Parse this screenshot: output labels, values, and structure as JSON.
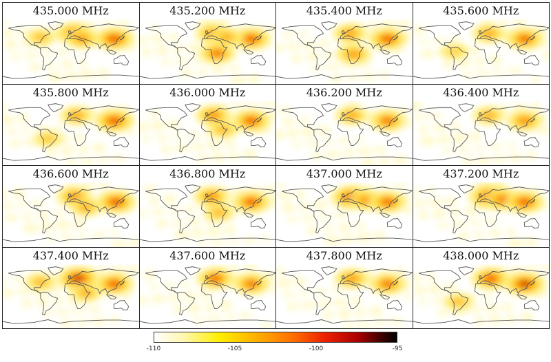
{
  "panels": [
    {
      "label": "435.000 MHz",
      "hotspots": [
        {
          "lon": 10,
          "lat": 50,
          "i": 0.75
        },
        {
          "lon": 115,
          "lat": 35,
          "i": 0.8
        },
        {
          "lon": 30,
          "lat": 35,
          "i": 0.5
        },
        {
          "lon": -80,
          "lat": 40,
          "i": 0.3
        }
      ]
    },
    {
      "label": "435.200 MHz",
      "hotspots": [
        {
          "lon": 15,
          "lat": 50,
          "i": 0.6
        },
        {
          "lon": 115,
          "lat": 35,
          "i": 0.75
        },
        {
          "lon": 25,
          "lat": -5,
          "i": 0.65
        },
        {
          "lon": 50,
          "lat": 40,
          "i": 0.4
        }
      ]
    },
    {
      "label": "435.400 MHz",
      "hotspots": [
        {
          "lon": 15,
          "lat": 50,
          "i": 0.5
        },
        {
          "lon": 115,
          "lat": 35,
          "i": 0.75
        },
        {
          "lon": 25,
          "lat": -8,
          "i": 0.55
        }
      ]
    },
    {
      "label": "435.600 MHz",
      "hotspots": [
        {
          "lon": 20,
          "lat": 50,
          "i": 0.45
        },
        {
          "lon": 115,
          "lat": 35,
          "i": 0.7
        },
        {
          "lon": -70,
          "lat": 0,
          "i": 0.2
        }
      ]
    },
    {
      "label": "435.800 MHz",
      "hotspots": [
        {
          "lon": 15,
          "lat": 50,
          "i": 0.45
        },
        {
          "lon": 115,
          "lat": 35,
          "i": 0.8
        },
        {
          "lon": -60,
          "lat": -15,
          "i": 0.25
        }
      ]
    },
    {
      "label": "436.000 MHz",
      "hotspots": [
        {
          "lon": 15,
          "lat": 50,
          "i": 0.6
        },
        {
          "lon": 115,
          "lat": 35,
          "i": 0.75
        },
        {
          "lon": 40,
          "lat": 10,
          "i": 0.35
        }
      ]
    },
    {
      "label": "436.200 MHz",
      "hotspots": [
        {
          "lon": 20,
          "lat": 50,
          "i": 0.45
        },
        {
          "lon": 115,
          "lat": 35,
          "i": 0.65
        }
      ]
    },
    {
      "label": "436.400 MHz",
      "hotspots": [
        {
          "lon": 20,
          "lat": 50,
          "i": 0.4
        },
        {
          "lon": 115,
          "lat": 35,
          "i": 0.6
        }
      ]
    },
    {
      "label": "436.600 MHz",
      "hotspots": [
        {
          "lon": 10,
          "lat": 50,
          "i": 0.6
        },
        {
          "lon": 120,
          "lat": 35,
          "i": 0.8
        },
        {
          "lon": 40,
          "lat": 20,
          "i": 0.4
        }
      ]
    },
    {
      "label": "436.800 MHz",
      "hotspots": [
        {
          "lon": 10,
          "lat": 50,
          "i": 0.6
        },
        {
          "lon": 115,
          "lat": 35,
          "i": 0.75
        },
        {
          "lon": 30,
          "lat": 5,
          "i": 0.35
        }
      ]
    },
    {
      "label": "437.000 MHz",
      "hotspots": [
        {
          "lon": 20,
          "lat": 48,
          "i": 0.9
        },
        {
          "lon": 60,
          "lat": 40,
          "i": 0.6
        },
        {
          "lon": 115,
          "lat": 35,
          "i": 0.7
        }
      ]
    },
    {
      "label": "437.200 MHz",
      "hotspots": [
        {
          "lon": 25,
          "lat": 50,
          "i": 1.0
        },
        {
          "lon": 60,
          "lat": 42,
          "i": 0.7
        },
        {
          "lon": 115,
          "lat": 35,
          "i": 0.75
        }
      ]
    },
    {
      "label": "437.400 MHz",
      "hotspots": [
        {
          "lon": 20,
          "lat": 50,
          "i": 0.95
        },
        {
          "lon": 115,
          "lat": 35,
          "i": 0.75
        },
        {
          "lon": -80,
          "lat": 40,
          "i": 0.35
        },
        {
          "lon": 40,
          "lat": 10,
          "i": 0.4
        }
      ]
    },
    {
      "label": "437.600 MHz",
      "hotspots": [
        {
          "lon": 20,
          "lat": 50,
          "i": 0.7
        },
        {
          "lon": 115,
          "lat": 35,
          "i": 0.65
        }
      ]
    },
    {
      "label": "437.800 MHz",
      "hotspots": [
        {
          "lon": 20,
          "lat": 50,
          "i": 0.55
        },
        {
          "lon": 115,
          "lat": 35,
          "i": 0.65
        }
      ]
    },
    {
      "label": "438.000 MHz",
      "hotspots": [
        {
          "lon": 25,
          "lat": 50,
          "i": 0.75
        },
        {
          "lon": 115,
          "lat": 35,
          "i": 0.9
        },
        {
          "lon": -60,
          "lat": -15,
          "i": 0.3
        }
      ]
    }
  ],
  "colorbar": {
    "ticks": [
      {
        "value": -110,
        "label": "-110"
      },
      {
        "value": -105,
        "label": "-105"
      },
      {
        "value": -100,
        "label": "-100"
      },
      {
        "value": -95,
        "label": "-95"
      }
    ],
    "min": -110,
    "max": -95,
    "colors": [
      "#ffffff",
      "#fff7b0",
      "#ffee00",
      "#ffb000",
      "#ff7000",
      "#ee2200",
      "#aa0000",
      "#3a0000",
      "#000000"
    ]
  }
}
